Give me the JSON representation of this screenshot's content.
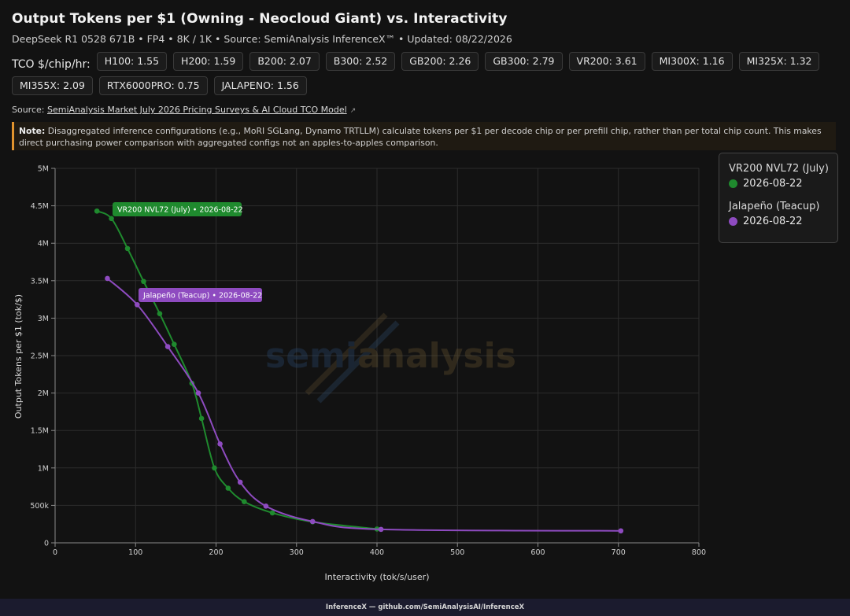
{
  "header": {
    "title": "Output Tokens per $1 (Owning - Neocloud Giant) vs. Interactivity",
    "subtitle": "DeepSeek R1 0528 671B • FP4 • 8K / 1K • Source: SemiAnalysis InferenceX™ • Updated: 08/22/2026"
  },
  "tco": {
    "label": "TCO $/chip/hr:",
    "chips": [
      "H100: 1.55",
      "H200: 1.59",
      "B200: 2.07",
      "B300: 2.52",
      "GB200: 2.26",
      "GB300: 2.79",
      "VR200: 3.61",
      "MI300X: 1.16",
      "MI325X: 1.32",
      "MI355X: 2.09",
      "RTX6000PRO: 0.75",
      "JALAPENO: 1.56"
    ]
  },
  "source": {
    "prefix": "Source:",
    "link_text": "SemiAnalysis Market July 2026 Pricing Surveys & AI Cloud TCO Model",
    "icon": "external-link-icon"
  },
  "note": {
    "label": "Note:",
    "text": "Disaggregated inference configurations (e.g., MoRI SGLang, Dynamo TRTLLM) calculate tokens per $1 per decode chip or per prefill chip, rather than per total chip count. This makes direct purchasing power comparison with aggregated configs not an apples-to-apples comparison."
  },
  "watermark": {
    "part1": "semi",
    "part2": "analysis"
  },
  "legend": {
    "groups": [
      {
        "title": "VR200 NVL72 (July)",
        "item": "2026-08-22",
        "color": "#1f8a2e"
      },
      {
        "title": "Jalapeño (Teacup)",
        "item": "2026-08-22",
        "color": "#8e4bc0"
      }
    ]
  },
  "footer": {
    "text": "InferenceX — github.com/SemiAnalysisAI/InferenceX"
  },
  "chart_data": {
    "type": "line",
    "title": "Output Tokens per $1 (Owning - Neocloud Giant) vs. Interactivity",
    "xlabel": "Interactivity (tok/s/user)",
    "ylabel": "Output Tokens per $1 (tok/$)",
    "xlim": [
      0,
      800
    ],
    "ylim": [
      0,
      5000000
    ],
    "x_ticks": [
      0,
      100,
      200,
      300,
      400,
      500,
      600,
      700,
      800
    ],
    "y_ticks": [
      0,
      500000,
      1000000,
      1500000,
      2000000,
      2500000,
      3000000,
      3500000,
      4000000,
      4500000,
      5000000
    ],
    "y_tick_labels": [
      "0",
      "500k",
      "1M",
      "1.5M",
      "2M",
      "2.5M",
      "3M",
      "3.5M",
      "4M",
      "4.5M",
      "5M"
    ],
    "grid": true,
    "legend_position": "top-right",
    "series": [
      {
        "name": "VR200 NVL72 (July)",
        "label": "VR200 NVL72 (July) • 2026-08-22",
        "color": "#1f8a2e",
        "points": [
          [
            52,
            4430000
          ],
          [
            70,
            4330000
          ],
          [
            90,
            3930000
          ],
          [
            110,
            3490000
          ],
          [
            130,
            3060000
          ],
          [
            148,
            2650000
          ],
          [
            170,
            2130000
          ],
          [
            182,
            1660000
          ],
          [
            198,
            1000000
          ],
          [
            215,
            730000
          ],
          [
            235,
            550000
          ],
          [
            270,
            400000
          ],
          [
            320,
            280000
          ],
          [
            400,
            185000
          ]
        ]
      },
      {
        "name": "Jalapeño (Teacup)",
        "label": "Jalapeño (Teacup) • 2026-08-22",
        "color": "#8e4bc0",
        "points": [
          [
            65,
            3530000
          ],
          [
            102,
            3180000
          ],
          [
            140,
            2620000
          ],
          [
            178,
            2000000
          ],
          [
            205,
            1320000
          ],
          [
            230,
            810000
          ],
          [
            262,
            490000
          ],
          [
            320,
            285000
          ],
          [
            405,
            180000
          ],
          [
            703,
            160000
          ]
        ]
      }
    ]
  }
}
